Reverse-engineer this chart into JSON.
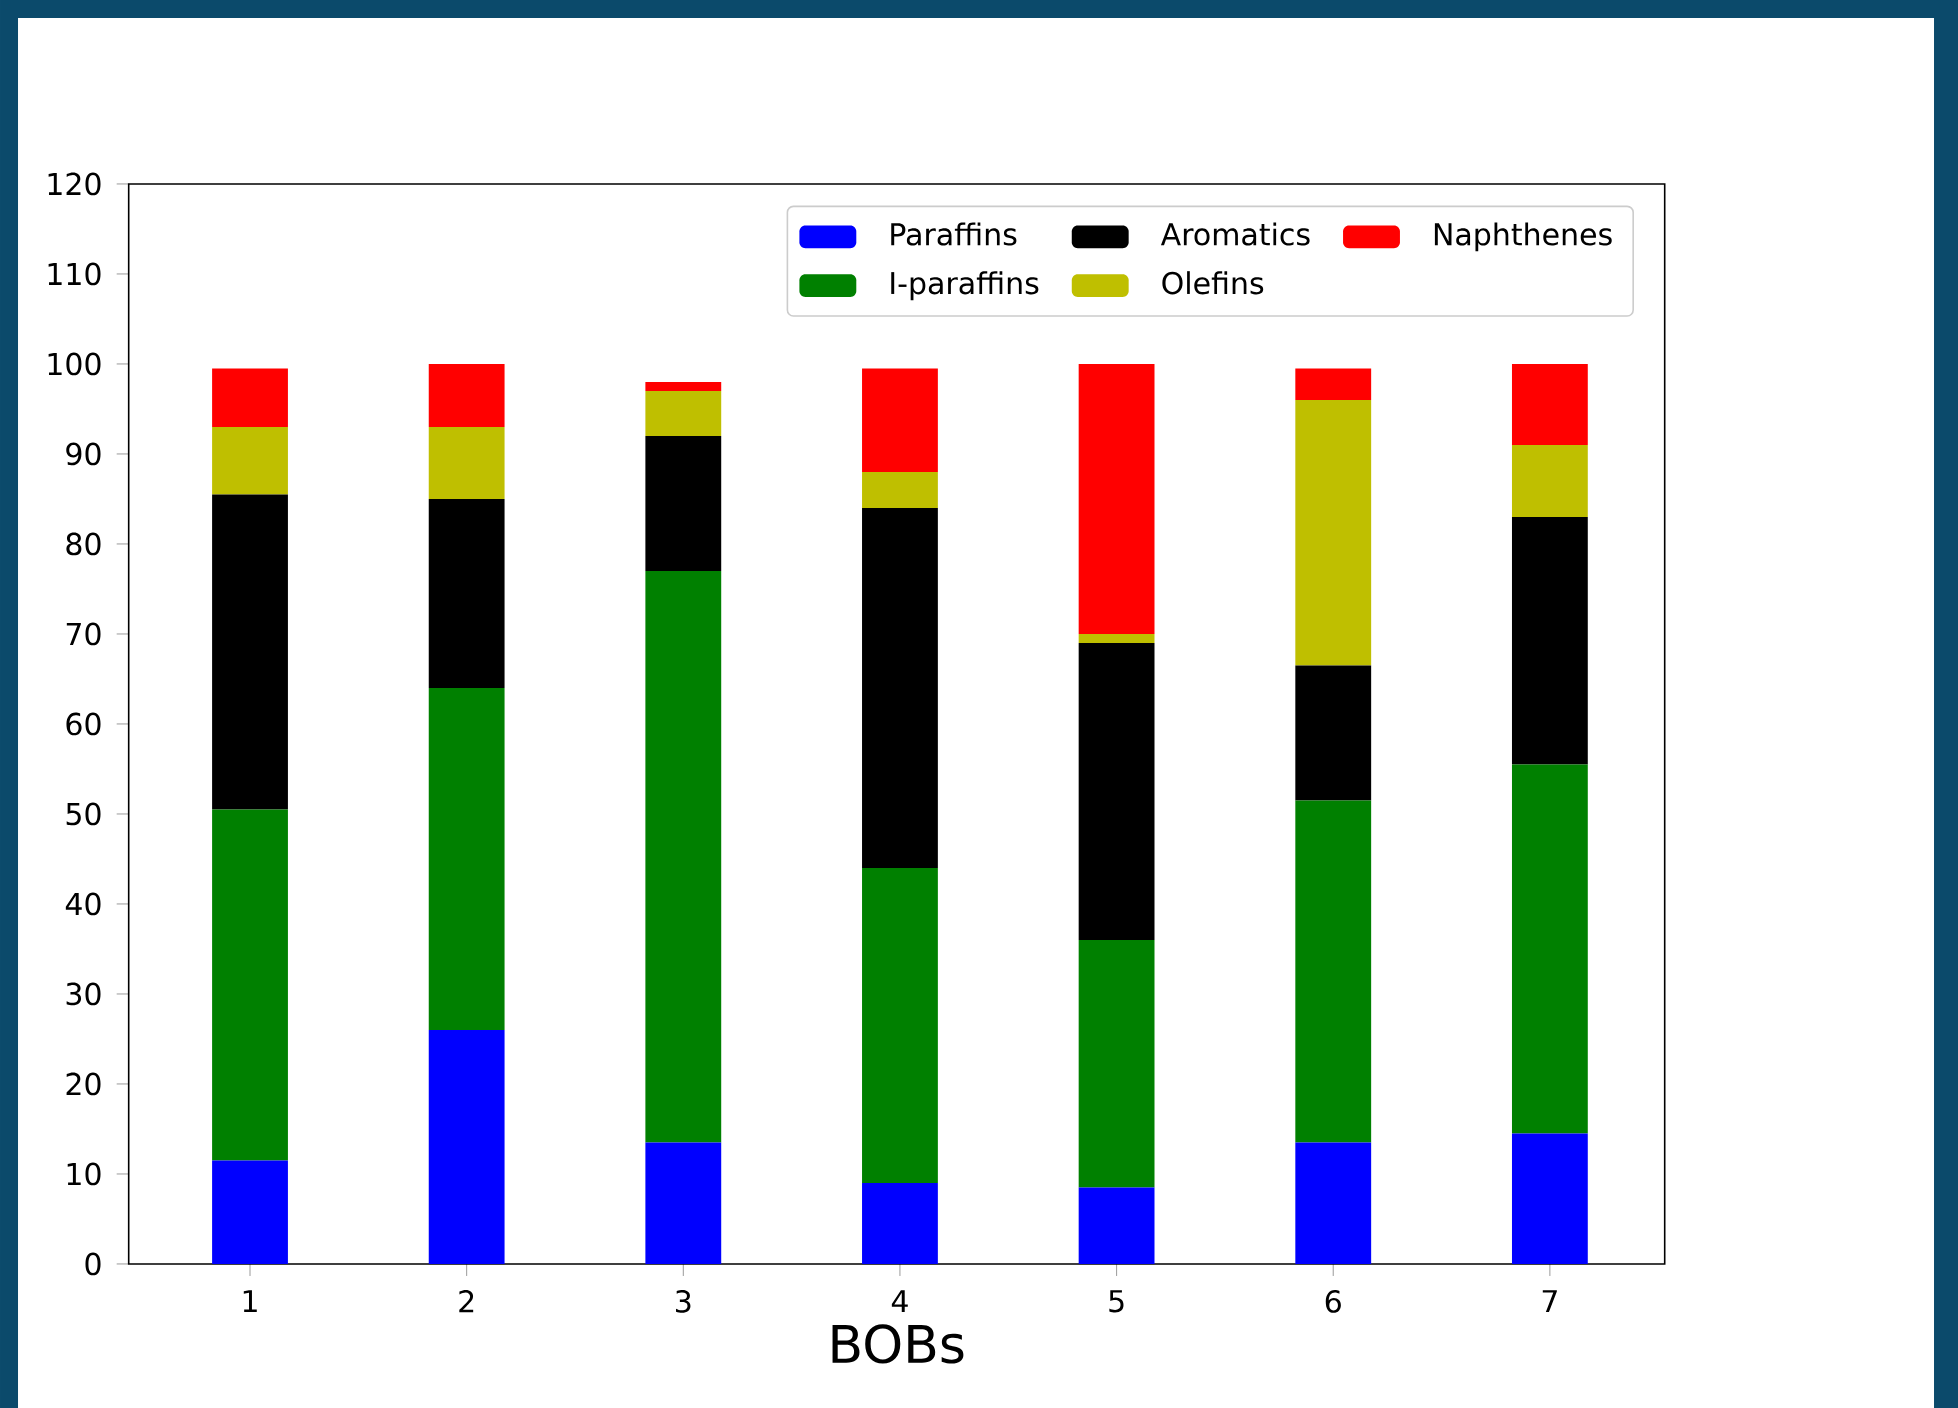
{
  "chart_data": {
    "type": "bar",
    "stacked": true,
    "xlabel": "BOBs",
    "categories": [
      "1",
      "2",
      "3",
      "4",
      "5",
      "6",
      "7"
    ],
    "ylim": [
      0,
      120
    ],
    "yticks": [
      0,
      10,
      20,
      30,
      40,
      50,
      60,
      70,
      80,
      90,
      100,
      110,
      120
    ],
    "legend": "top right",
    "grid": false,
    "series": [
      {
        "name": "Paraffins",
        "color": "#0000ff",
        "values": [
          11.5,
          26,
          13.5,
          9,
          8.5,
          13.5,
          14.5
        ]
      },
      {
        "name": "I-paraffins",
        "color": "#008000",
        "values": [
          39,
          38,
          63.5,
          35,
          27.5,
          38,
          41
        ]
      },
      {
        "name": "Aromatics",
        "color": "#000000",
        "values": [
          35,
          21,
          15,
          40,
          33,
          15,
          27.5
        ]
      },
      {
        "name": "Olefins",
        "color": "#bfbf00",
        "values": [
          7.5,
          8,
          5,
          4,
          1,
          29.5,
          8
        ]
      },
      {
        "name": "Naphthenes",
        "color": "#ff0000",
        "values": [
          6.5,
          7,
          1,
          11.5,
          30,
          3.5,
          9
        ]
      }
    ]
  }
}
